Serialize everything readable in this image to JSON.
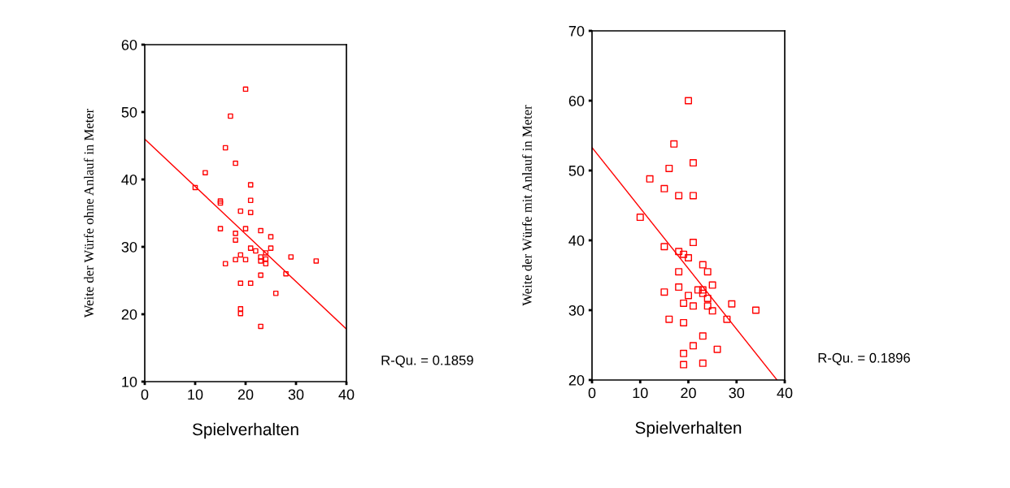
{
  "chart_data": [
    {
      "type": "scatter",
      "xlabel": "Spielverhalten",
      "ylabel": "Weite der Würfe ohne Anlauf in Meter",
      "annotations": [
        "R-Qu. = 0.1859"
      ],
      "marker": "square",
      "grid": false,
      "legend": false,
      "xlim": [
        0,
        40
      ],
      "xticks": [
        0,
        10,
        20,
        30,
        40
      ],
      "ylim": [
        10,
        60
      ],
      "yticks": [
        10,
        20,
        30,
        40,
        50,
        60
      ],
      "series": [
        {
          "color": "#ff0000",
          "x": [
            20,
            17,
            16,
            18,
            12,
            10,
            21,
            15,
            15,
            21,
            19,
            21,
            15,
            20,
            18,
            23,
            18,
            25,
            21,
            22,
            24,
            25,
            19,
            23,
            24,
            29,
            18,
            20,
            23,
            16,
            24,
            34,
            28,
            23,
            19,
            21,
            26,
            19,
            19,
            23
          ],
          "values": [
            53.4,
            49.4,
            44.7,
            42.4,
            41.0,
            38.8,
            39.2,
            36.8,
            36.5,
            36.9,
            35.3,
            35.1,
            32.7,
            32.7,
            32.0,
            32.4,
            31.0,
            31.5,
            29.8,
            29.4,
            29.1,
            29.8,
            28.8,
            28.5,
            28.2,
            28.5,
            28.1,
            28.1,
            27.9,
            27.5,
            27.5,
            27.9,
            26.0,
            25.8,
            24.6,
            24.6,
            23.1,
            20.8,
            20.1,
            18.2
          ]
        },
        {
          "type": "line",
          "color": "#ff0000",
          "marker": "none",
          "x": [
            0,
            40
          ],
          "values": [
            46.0,
            17.8
          ]
        }
      ]
    },
    {
      "type": "scatter",
      "xlabel": "Spielverhalten",
      "ylabel": "Weite der Würfe mit Anlauf in Meter",
      "annotations": [
        "R-Qu. = 0.1896"
      ],
      "marker": "square",
      "grid": false,
      "legend": false,
      "xlim": [
        0,
        40
      ],
      "xticks": [
        0,
        10,
        20,
        30,
        40
      ],
      "ylim": [
        20,
        70
      ],
      "yticks": [
        20,
        30,
        40,
        50,
        60,
        70
      ],
      "series": [
        {
          "color": "#ff0000",
          "x": [
            20,
            17,
            21,
            16,
            12,
            15,
            18,
            21,
            10,
            21,
            15,
            18,
            19,
            20,
            23,
            24,
            18,
            25,
            18,
            22,
            23,
            23,
            15,
            20,
            24,
            19,
            29,
            21,
            24,
            25,
            34,
            16,
            28,
            19,
            23,
            21,
            26,
            19,
            19,
            23
          ],
          "values": [
            60.0,
            53.8,
            51.1,
            50.3,
            48.8,
            47.4,
            46.4,
            46.4,
            43.3,
            39.7,
            39.1,
            38.4,
            38.0,
            37.5,
            36.5,
            35.5,
            35.5,
            33.6,
            33.3,
            32.9,
            32.9,
            32.4,
            32.6,
            32.1,
            31.7,
            31.0,
            30.9,
            30.6,
            30.6,
            29.9,
            30.0,
            28.7,
            28.7,
            28.2,
            26.3,
            24.9,
            24.4,
            23.8,
            22.2,
            22.4
          ]
        },
        {
          "type": "line",
          "color": "#ff0000",
          "marker": "none",
          "x": [
            0,
            38.4
          ],
          "values": [
            53.3,
            20
          ]
        }
      ]
    }
  ]
}
